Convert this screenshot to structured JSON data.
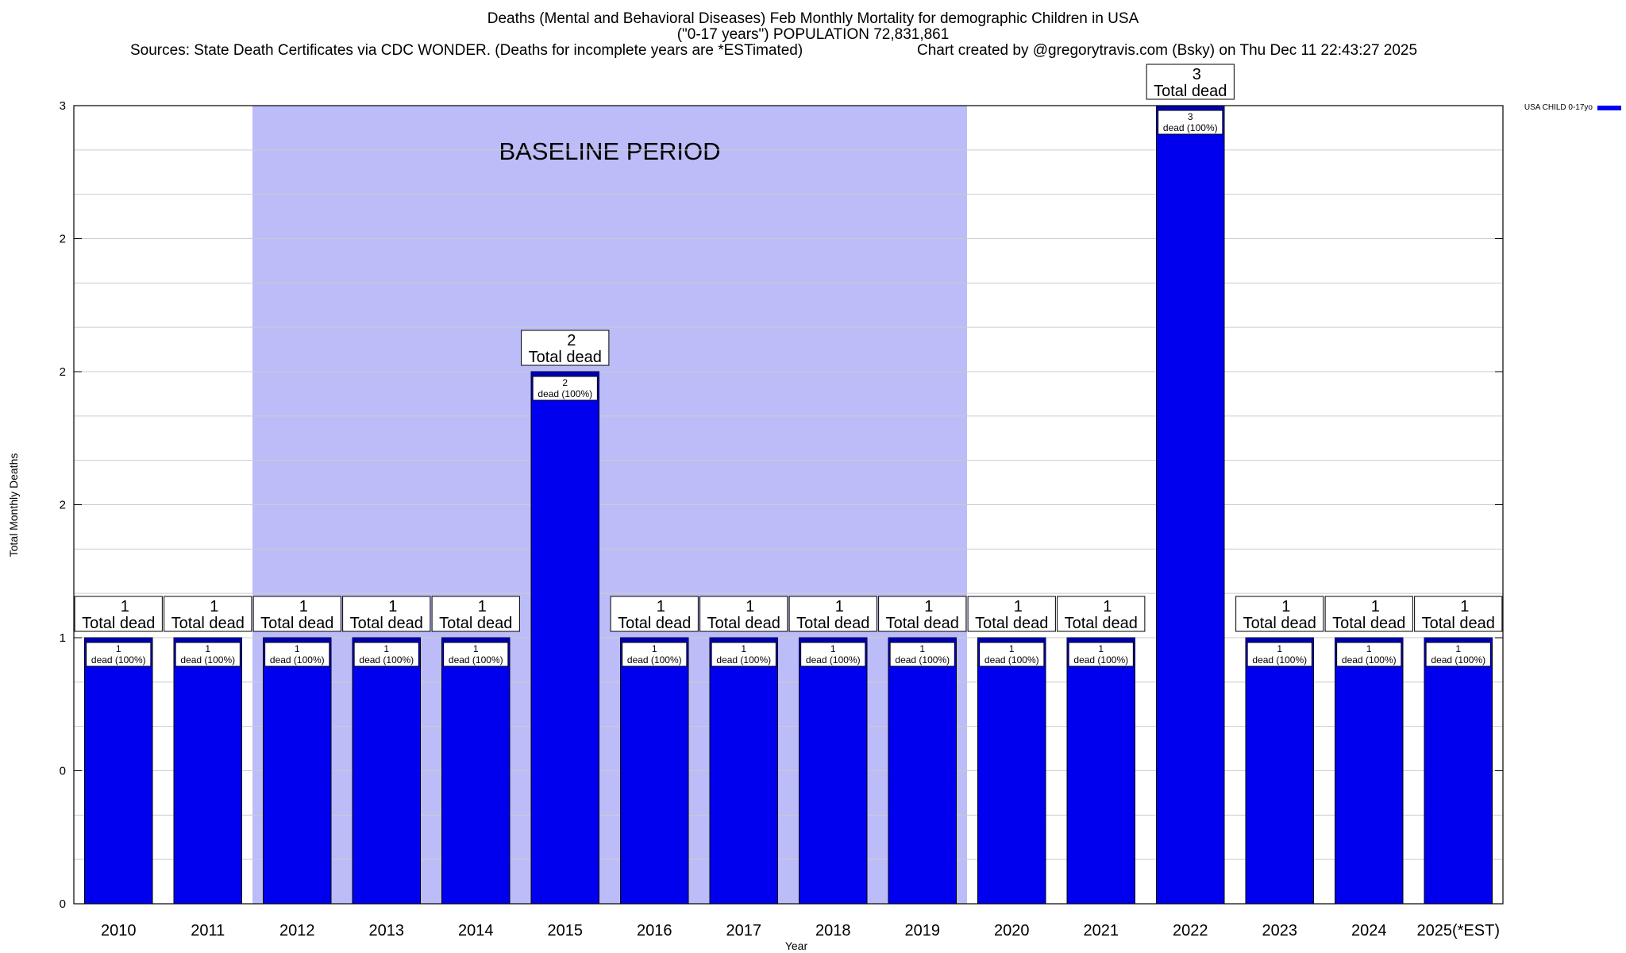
{
  "title": {
    "line1": "Deaths (Mental and Behavioral Diseases) Feb Monthly Mortality for demographic Children in USA",
    "line2": "(\"0-17 years\") POPULATION 72,831,861",
    "sources": "Sources: State Death Certificates via CDC WONDER. (Deaths for incomplete years are *ESTimated)",
    "credit": "Chart created by @gregorytravis.com (Bsky) on Thu Dec 11 22:43:27 2025"
  },
  "colors": {
    "bar": "#0000ee",
    "bar_top": "#0000aa",
    "baseline_shade": "#bcbcf8",
    "grid": "#cccccc",
    "axis": "#000000"
  },
  "chart_data": {
    "type": "bar",
    "xlabel": "Year",
    "ylabel": "Total Monthly Deaths",
    "ylim": [
      0,
      3
    ],
    "y_ticks": [
      {
        "value": 0,
        "label": "0"
      },
      {
        "value": 0.5,
        "label": "0"
      },
      {
        "value": 1,
        "label": "1"
      },
      {
        "value": 1.5,
        "label": "2"
      },
      {
        "value": 2,
        "label": "2"
      },
      {
        "value": 2.5,
        "label": "2"
      },
      {
        "value": 3,
        "label": "3"
      }
    ],
    "grid": true,
    "legend_position": "top-right",
    "categories": [
      "2010",
      "2011",
      "2012",
      "2013",
      "2014",
      "2015",
      "2016",
      "2017",
      "2018",
      "2019",
      "2020",
      "2021",
      "2022",
      "2023",
      "2024",
      "2025(*EST)"
    ],
    "series": [
      {
        "name": "USA CHILD 0-17yo",
        "values": [
          1,
          1,
          1,
          1,
          1,
          2,
          1,
          1,
          1,
          1,
          1,
          1,
          3,
          1,
          1,
          1
        ]
      }
    ],
    "top_label_suffix": "Total dead",
    "inner_label_suffix": "dead (100%)",
    "annotation": {
      "text": "BASELINE PERIOD",
      "from": "2012",
      "to": "2019"
    }
  }
}
